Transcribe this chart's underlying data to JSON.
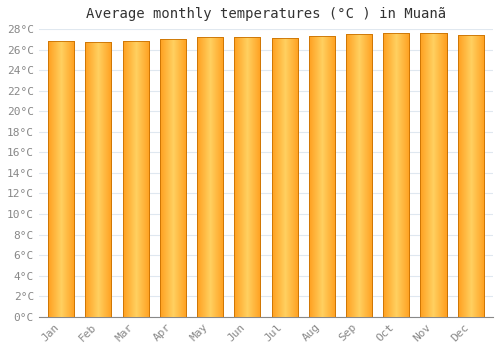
{
  "title": "Average monthly temperatures (°C ) in Muanã",
  "months": [
    "Jan",
    "Feb",
    "Mar",
    "Apr",
    "May",
    "Jun",
    "Jul",
    "Aug",
    "Sep",
    "Oct",
    "Nov",
    "Dec"
  ],
  "values": [
    26.8,
    26.7,
    26.8,
    27.0,
    27.2,
    27.2,
    27.1,
    27.3,
    27.5,
    27.6,
    27.6,
    27.4
  ],
  "bar_color": "#FFA500",
  "bar_edge_color": "#E08000",
  "ylim": [
    0,
    28
  ],
  "yticks": [
    0,
    2,
    4,
    6,
    8,
    10,
    12,
    14,
    16,
    18,
    20,
    22,
    24,
    26,
    28
  ],
  "background_color": "#FFFFFF",
  "grid_color": "#E0E8F0",
  "title_fontsize": 10,
  "tick_fontsize": 8,
  "font_family": "monospace"
}
